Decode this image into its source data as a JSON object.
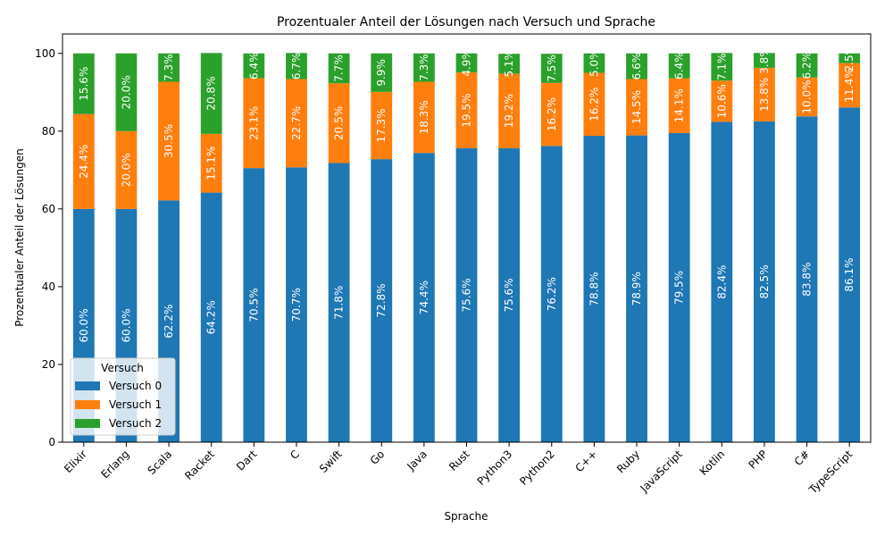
{
  "chart_data": {
    "type": "bar",
    "stacked": true,
    "title": "Prozentualer Anteil der Lösungen nach Versuch und Sprache",
    "xlabel": "Sprache",
    "ylabel": "Prozentualer Anteil der Lösungen",
    "ylim": [
      0,
      105
    ],
    "yticks": [
      0,
      20,
      40,
      60,
      80,
      100
    ],
    "grid": false,
    "legend": {
      "title": "Versuch",
      "placement": "lower-left"
    },
    "categories": [
      "Elixir",
      "Erlang",
      "Scala",
      "Racket",
      "Dart",
      "C",
      "Swift",
      "Go",
      "Java",
      "Rust",
      "Python3",
      "Python2",
      "C++",
      "Ruby",
      "JavaScript",
      "Kotlin",
      "PHP",
      "C#",
      "TypeScript"
    ],
    "series": [
      {
        "name": "Versuch 0",
        "color": "#1f77b4",
        "values": [
          60.0,
          60.0,
          62.2,
          64.2,
          70.5,
          70.7,
          71.8,
          72.8,
          74.4,
          75.6,
          75.6,
          76.2,
          78.8,
          78.9,
          79.5,
          82.4,
          82.5,
          83.8,
          86.1
        ],
        "labels": [
          "60.0%",
          "60.0%",
          "62.2%",
          "64.2%",
          "70.5%",
          "70.7%",
          "71.8%",
          "72.8%",
          "74.4%",
          "75.6%",
          "75.6%",
          "76.2%",
          "78.8%",
          "78.9%",
          "79.5%",
          "82.4%",
          "82.5%",
          "83.8%",
          "86.1%"
        ]
      },
      {
        "name": "Versuch 1",
        "color": "#ff7f0e",
        "values": [
          24.4,
          20.0,
          30.5,
          15.1,
          23.1,
          22.7,
          20.5,
          17.3,
          18.3,
          19.5,
          19.2,
          16.2,
          16.2,
          14.5,
          14.1,
          10.6,
          13.8,
          10.0,
          11.4
        ],
        "labels": [
          "24.4%",
          "20.0%",
          "30.5%",
          "15.1%",
          "23.1%",
          "22.7%",
          "20.5%",
          "17.3%",
          "18.3%",
          "19.5%",
          "19.2%",
          "16.2%",
          "16.2%",
          "14.5%",
          "14.1%",
          "10.6%",
          "13.8%",
          "10.0%",
          "11.4%"
        ]
      },
      {
        "name": "Versuch 2",
        "color": "#2ca02c",
        "values": [
          15.6,
          20.0,
          7.3,
          20.8,
          6.4,
          6.7,
          7.7,
          9.9,
          7.3,
          4.9,
          5.1,
          7.5,
          5.0,
          6.6,
          6.4,
          7.1,
          3.8,
          6.2,
          2.5
        ],
        "labels": [
          "15.6%",
          "20.0%",
          "7.3%",
          "20.8%",
          "6.4%",
          "6.7%",
          "7.7%",
          "9.9%",
          "7.3%",
          "4.9%",
          "5.1%",
          "7.5%",
          "5.0%",
          "6.6%",
          "6.4%",
          "7.1%",
          "3.8%",
          "6.2%",
          "2.5%"
        ]
      }
    ]
  }
}
